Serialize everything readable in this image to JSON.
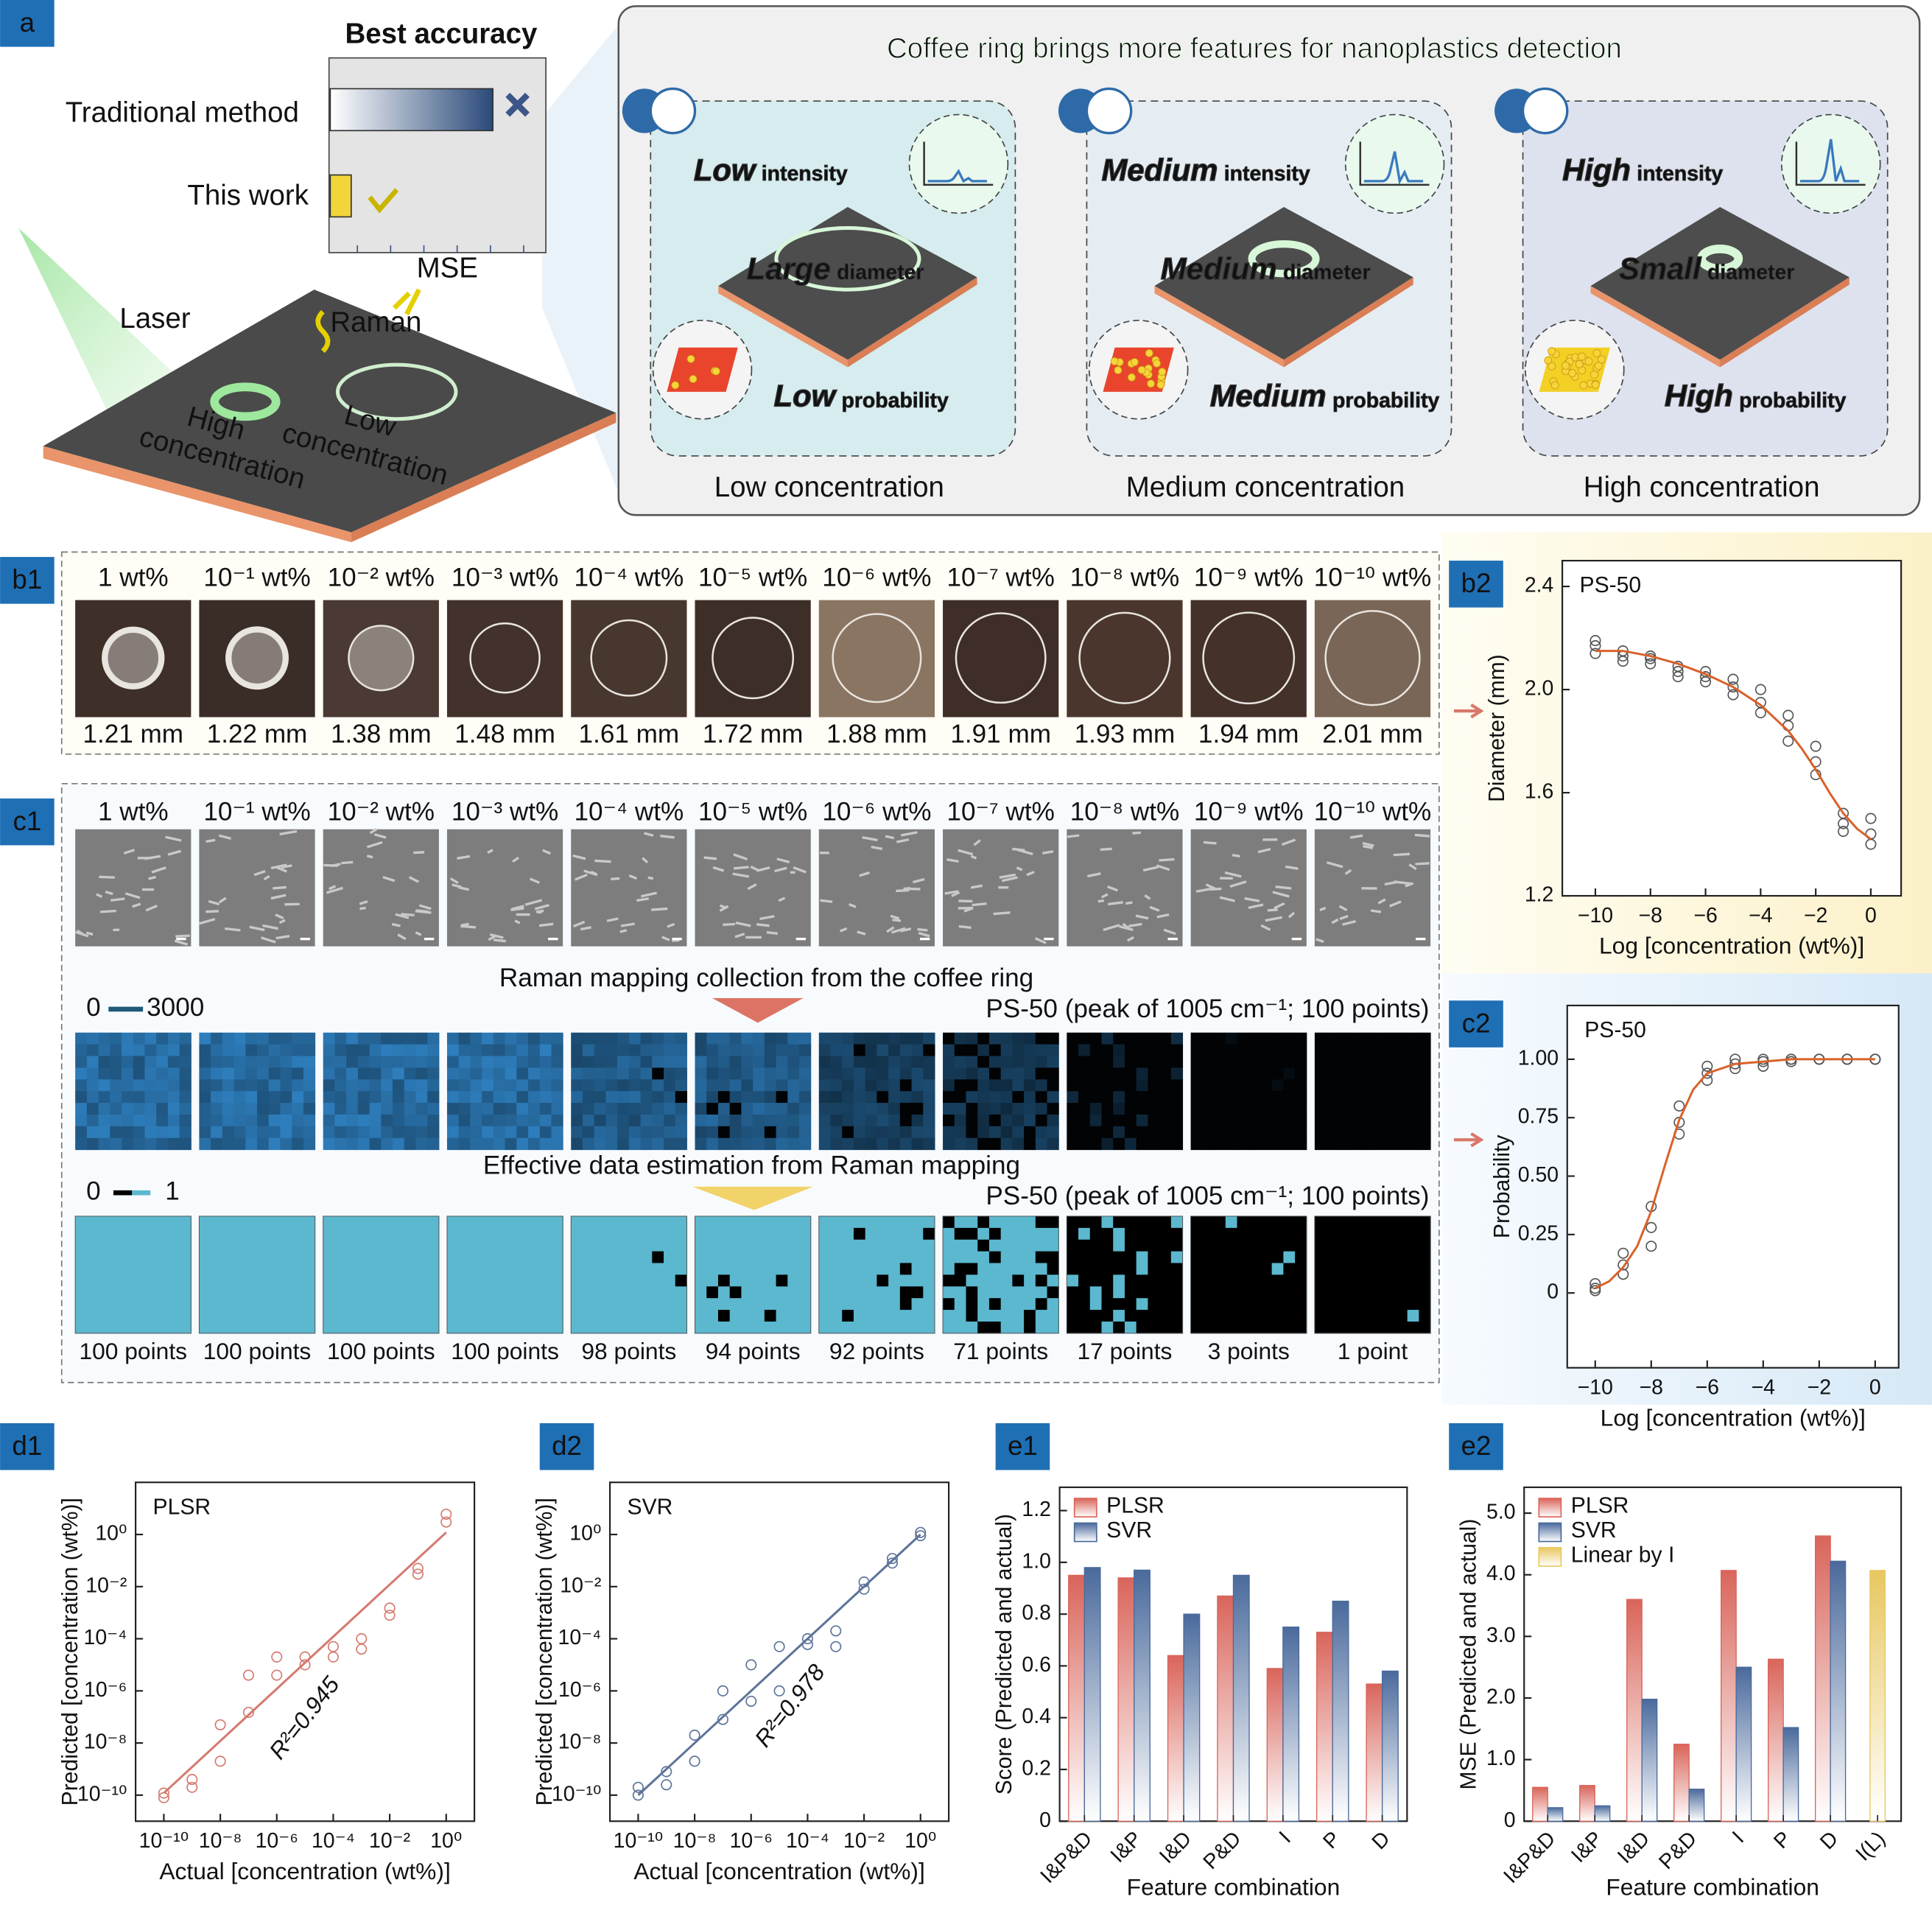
{
  "panel_labels": [
    "a",
    "b1",
    "b2",
    "c1",
    "c2",
    "d1",
    "d2",
    "e1",
    "e2"
  ],
  "concentrations": [
    "1 wt%",
    "10⁻¹ wt%",
    "10⁻² wt%",
    "10⁻³ wt%",
    "10⁻⁴ wt%",
    "10⁻⁵ wt%",
    "10⁻⁶ wt%",
    "10⁻⁷ wt%",
    "10⁻⁸ wt%",
    "10⁻⁹ wt%",
    "10⁻¹⁰ wt%"
  ],
  "panel_a": {
    "best_accuracy": "Best accuracy",
    "traditional": "Traditional method",
    "this_work": "This work",
    "mse": "MSE",
    "laser": "Laser",
    "raman": "Raman",
    "high_conc": [
      "High",
      "concentration"
    ],
    "low_conc": [
      "Low",
      "concentration"
    ],
    "banner": "Coffee ring brings more features for nanoplastics detection",
    "feature_words": {
      "intensity": "intensity",
      "diameter": "diameter",
      "probability": "probability"
    },
    "cards": [
      {
        "intensity": "Low",
        "diameter": "Large",
        "probability": "Low",
        "label": "Low concentration"
      },
      {
        "intensity": "Medium",
        "diameter": "Medium",
        "probability": "Medium",
        "label": "Medium concentration"
      },
      {
        "intensity": "High",
        "diameter": "Small",
        "probability": "High",
        "label": "High concentration"
      }
    ]
  },
  "panel_b1": {
    "diameters": {
      "values": [
        1.21,
        1.22,
        1.38,
        1.48,
        1.61,
        1.72,
        1.88,
        1.91,
        1.93,
        1.94,
        2.01
      ],
      "value_labels": [
        "1.21 mm",
        "1.22 mm",
        "1.38 mm",
        "1.48 mm",
        "1.61 mm",
        "1.72 mm",
        "1.88 mm",
        "1.91 mm",
        "1.93 mm",
        "1.94 mm",
        "2.01 mm"
      ]
    }
  },
  "panel_c1": {
    "raman_title": "Raman mapping collection from the coffee ring",
    "raman_colorbar": [
      0,
      3000
    ],
    "peak_label": "PS-50 (peak of 1005 cm⁻¹; 100 points)",
    "effective_title": "Effective data estimation from Raman mapping",
    "effective_colorbar": [
      0,
      1
    ],
    "effective_points": {
      "values": [
        100,
        100,
        100,
        100,
        98,
        94,
        92,
        71,
        17,
        3,
        1
      ],
      "value_labels": [
        "100 points",
        "100 points",
        "100 points",
        "100 points",
        "98 points",
        "94 points",
        "92 points",
        "71 points",
        "17 points",
        "3 points",
        "1 point"
      ]
    }
  },
  "chart_data": [
    {
      "type": "scatter",
      "title": "PS-50",
      "xlabel": "Log [concentration (wt%)]",
      "ylabel": "Diameter (mm)",
      "xlim": [
        -11.2,
        1.1
      ],
      "ylim": [
        1.2,
        2.5
      ],
      "xticks": [
        {
          "value": -10,
          "label": "−10"
        },
        {
          "value": -8,
          "label": "−8"
        },
        {
          "value": -6,
          "label": "−6"
        },
        {
          "value": -4,
          "label": "−4"
        },
        {
          "value": -2,
          "label": "−2"
        },
        0
      ],
      "yticks": [
        1.2,
        1.6,
        {
          "value": 2,
          "label": "2.0"
        },
        2.4
      ],
      "series": [
        {
          "color": "#555555",
          "marker": "circle",
          "x": [
            -10,
            -10,
            -10,
            -9,
            -9,
            -9,
            -8,
            -8,
            -8,
            -7,
            -7,
            -7,
            -6,
            -6,
            -6,
            -5,
            -5,
            -5,
            -4,
            -4,
            -4,
            -3,
            -3,
            -3,
            -2,
            -2,
            -2,
            -1,
            -1,
            -1,
            0,
            0,
            0
          ],
          "values": [
            2.14,
            2.17,
            2.19,
            2.11,
            2.13,
            2.15,
            2.1,
            2.12,
            2.13,
            2.05,
            2.07,
            2.09,
            2.03,
            2.05,
            2.07,
            1.98,
            2.01,
            2.04,
            1.91,
            1.95,
            2.0,
            1.8,
            1.86,
            1.9,
            1.67,
            1.72,
            1.78,
            1.45,
            1.48,
            1.52,
            1.4,
            1.44,
            1.5
          ]
        },
        {
          "color": "#d9622b",
          "marker": "line",
          "x": [
            -10,
            -9,
            -8,
            -7,
            -6,
            -5,
            -4,
            -3,
            -2.5,
            -2,
            -1.5,
            -1,
            -0.5,
            0
          ],
          "values": [
            2.15,
            2.15,
            2.13,
            2.1,
            2.06,
            2.01,
            1.94,
            1.84,
            1.77,
            1.69,
            1.6,
            1.52,
            1.46,
            1.42
          ]
        }
      ]
    },
    {
      "type": "scatter",
      "title": "PS-50",
      "xlabel": "Log [concentration (wt%)]",
      "ylabel": "Probability",
      "xlim": [
        -11,
        0.84
      ],
      "ylim": [
        -0.32,
        1.23
      ],
      "xticks": [
        {
          "value": -10,
          "label": "−10"
        },
        {
          "value": -8,
          "label": "−8"
        },
        {
          "value": -6,
          "label": "−6"
        },
        {
          "value": -4,
          "label": "−4"
        },
        {
          "value": -2,
          "label": "−2"
        },
        0
      ],
      "yticks": [
        0,
        0.25,
        {
          "value": 0.5,
          "label": "0.50"
        },
        0.75,
        {
          "value": 1,
          "label": "1.00"
        }
      ],
      "series": [
        {
          "color": "#555555",
          "marker": "circle",
          "x": [
            -10,
            -10,
            -10,
            -9,
            -9,
            -9,
            -8,
            -8,
            -8,
            -7,
            -7,
            -7,
            -6,
            -6,
            -6,
            -5,
            -5,
            -5,
            -4,
            -4,
            -4,
            -3,
            -3,
            -3,
            -2,
            -2,
            -2,
            -1,
            -1,
            -1,
            0,
            0,
            0
          ],
          "values": [
            0.01,
            0.02,
            0.04,
            0.08,
            0.12,
            0.17,
            0.2,
            0.28,
            0.37,
            0.68,
            0.73,
            0.8,
            0.91,
            0.94,
            0.97,
            0.96,
            0.98,
            1,
            0.97,
            0.99,
            1,
            0.99,
            1,
            1,
            1,
            1,
            1,
            1,
            1,
            1,
            1,
            1,
            1
          ]
        },
        {
          "color": "#d9622b",
          "marker": "line",
          "x": [
            -10,
            -9.5,
            -9,
            -8.5,
            -8,
            -7.5,
            -7,
            -6.5,
            -6,
            -5,
            -4,
            -3,
            -2,
            -1,
            0
          ],
          "values": [
            0.02,
            0.05,
            0.11,
            0.2,
            0.35,
            0.55,
            0.74,
            0.87,
            0.94,
            0.98,
            0.99,
            1,
            1,
            1,
            1
          ]
        }
      ]
    },
    {
      "type": "scatter",
      "log": true,
      "title": "PLSR",
      "annotation": "R²=0.945",
      "xlabel": "Actual [concentration (wt%)]",
      "ylabel": "Predicted [concentration (wt%)]",
      "xlim": [
        1e-11,
        10
      ],
      "ylim": [
        1e-11,
        100
      ],
      "xticks": [
        {
          "value": 1e-10,
          "label": "10⁻¹⁰"
        },
        {
          "value": 1e-08,
          "label": "10⁻⁸"
        },
        {
          "value": 1e-06,
          "label": "10⁻⁶"
        },
        {
          "value": 0.0001,
          "label": "10⁻⁴"
        },
        {
          "value": 0.01,
          "label": "10⁻²"
        },
        {
          "value": 1,
          "label": "10⁰"
        }
      ],
      "yticks": [
        {
          "value": 1e-10,
          "label": "10⁻¹⁰"
        },
        {
          "value": 1e-08,
          "label": "10⁻⁸"
        },
        {
          "value": 1e-06,
          "label": "10⁻⁶"
        },
        {
          "value": 0.0001,
          "label": "10⁻⁴"
        },
        {
          "value": 0.01,
          "label": "10⁻²"
        },
        {
          "value": 1,
          "label": "10⁰"
        }
      ],
      "series": [
        {
          "color": "#d47a6f",
          "marker": "circle",
          "x": [
            1e-10,
            1e-10,
            1e-09,
            1e-09,
            1e-08,
            1e-08,
            1e-07,
            1e-07,
            1e-06,
            1e-06,
            1e-05,
            1e-05,
            0.0001,
            0.0001,
            0.001,
            0.001,
            0.01,
            0.01,
            0.1,
            0.1,
            1,
            1
          ],
          "values": [
            1.2e-10,
            8e-11,
            4e-10,
            2e-10,
            5e-08,
            2e-09,
            4e-06,
            1.5e-07,
            2e-05,
            4e-06,
            2e-05,
            1e-05,
            5e-05,
            2e-05,
            0.0001,
            4e-05,
            0.0015,
            0.0008,
            0.05,
            0.03,
            6,
            3
          ]
        },
        {
          "color": "#d47a6f",
          "marker": "line",
          "x": [
            1e-10,
            1
          ],
          "values": [
            1.2e-10,
            1.2
          ]
        }
      ]
    },
    {
      "type": "scatter",
      "log": true,
      "title": "SVR",
      "annotation": "R²=0.978",
      "xlabel": "Actual [concentration (wt%)]",
      "ylabel": "Predicted [concentration (wt%)]",
      "xlim": [
        1e-11,
        10
      ],
      "ylim": [
        1e-11,
        100
      ],
      "xticks": [
        {
          "value": 1e-10,
          "label": "10⁻¹⁰"
        },
        {
          "value": 1e-08,
          "label": "10⁻⁸"
        },
        {
          "value": 1e-06,
          "label": "10⁻⁶"
        },
        {
          "value": 0.0001,
          "label": "10⁻⁴"
        },
        {
          "value": 0.01,
          "label": "10⁻²"
        },
        {
          "value": 1,
          "label": "10⁰"
        }
      ],
      "yticks": [
        {
          "value": 1e-10,
          "label": "10⁻¹⁰"
        },
        {
          "value": 1e-08,
          "label": "10⁻⁸"
        },
        {
          "value": 1e-06,
          "label": "10⁻⁶"
        },
        {
          "value": 0.0001,
          "label": "10⁻⁴"
        },
        {
          "value": 0.01,
          "label": "10⁻²"
        },
        {
          "value": 1,
          "label": "10⁰"
        }
      ],
      "series": [
        {
          "color": "#5d7399",
          "marker": "circle",
          "x": [
            1e-10,
            1e-10,
            1e-09,
            1e-09,
            1e-08,
            1e-08,
            1e-07,
            1e-07,
            1e-06,
            1e-06,
            1e-05,
            1e-05,
            0.0001,
            0.0001,
            0.001,
            0.001,
            0.01,
            0.01,
            0.1,
            0.1,
            1,
            1
          ],
          "values": [
            2e-10,
            1e-10,
            8e-10,
            2.5e-10,
            2e-08,
            2e-09,
            1e-06,
            8e-08,
            1e-05,
            4e-07,
            5e-05,
            1e-06,
            0.0001,
            6e-05,
            0.0002,
            5e-05,
            0.015,
            0.008,
            0.12,
            0.08,
            1.2,
            0.9
          ]
        },
        {
          "color": "#5d7399",
          "marker": "line",
          "x": [
            1e-10,
            1
          ],
          "values": [
            1e-10,
            1
          ]
        }
      ]
    },
    {
      "type": "bar",
      "xlabel": "Feature combination",
      "ylabel": "Score (Predicted and actual)",
      "categories": [
        "I&P&D",
        "I&P",
        "I&D",
        "P&D",
        "I",
        "P",
        "D"
      ],
      "ylim": [
        0,
        1.29
      ],
      "yticks": [
        0,
        0.2,
        0.4,
        0.6,
        0.8,
        {
          "value": 1,
          "label": "1.0"
        },
        1.2
      ],
      "series": [
        {
          "name": "PLSR",
          "color": "#d9655b",
          "values": [
            0.95,
            0.94,
            0.64,
            0.87,
            0.59,
            0.73,
            0.53
          ]
        },
        {
          "name": "SVR",
          "color": "#4a6a9c",
          "values": [
            0.98,
            0.97,
            0.8,
            0.95,
            0.75,
            0.85,
            0.58
          ]
        }
      ]
    },
    {
      "type": "bar",
      "xlabel": "Feature combination",
      "ylabel": "MSE (Predicted and actual)",
      "categories": [
        "I&P&D",
        "I&P",
        "I&D",
        "P&D",
        "I",
        "P",
        "D",
        "I(L)"
      ],
      "ylim": [
        0,
        5.42
      ],
      "yticks": [
        0,
        {
          "value": 1,
          "label": "1.0"
        },
        {
          "value": 2,
          "label": "2.0"
        },
        {
          "value": 3,
          "label": "3.0"
        },
        {
          "value": 4,
          "label": "4.0"
        },
        {
          "value": 5,
          "label": "5.0"
        }
      ],
      "series": [
        {
          "name": "PLSR",
          "color": "#d9655b",
          "values": [
            0.55,
            0.58,
            3.6,
            1.25,
            4.07,
            2.63,
            4.63,
            null
          ]
        },
        {
          "name": "SVR",
          "color": "#4a6a9c",
          "values": [
            0.22,
            0.25,
            1.98,
            0.52,
            2.5,
            1.52,
            4.22,
            null
          ]
        },
        {
          "name": "Linear by I",
          "color": "#e8c760",
          "values": [
            null,
            null,
            null,
            null,
            null,
            null,
            null,
            4.07
          ]
        }
      ]
    }
  ]
}
